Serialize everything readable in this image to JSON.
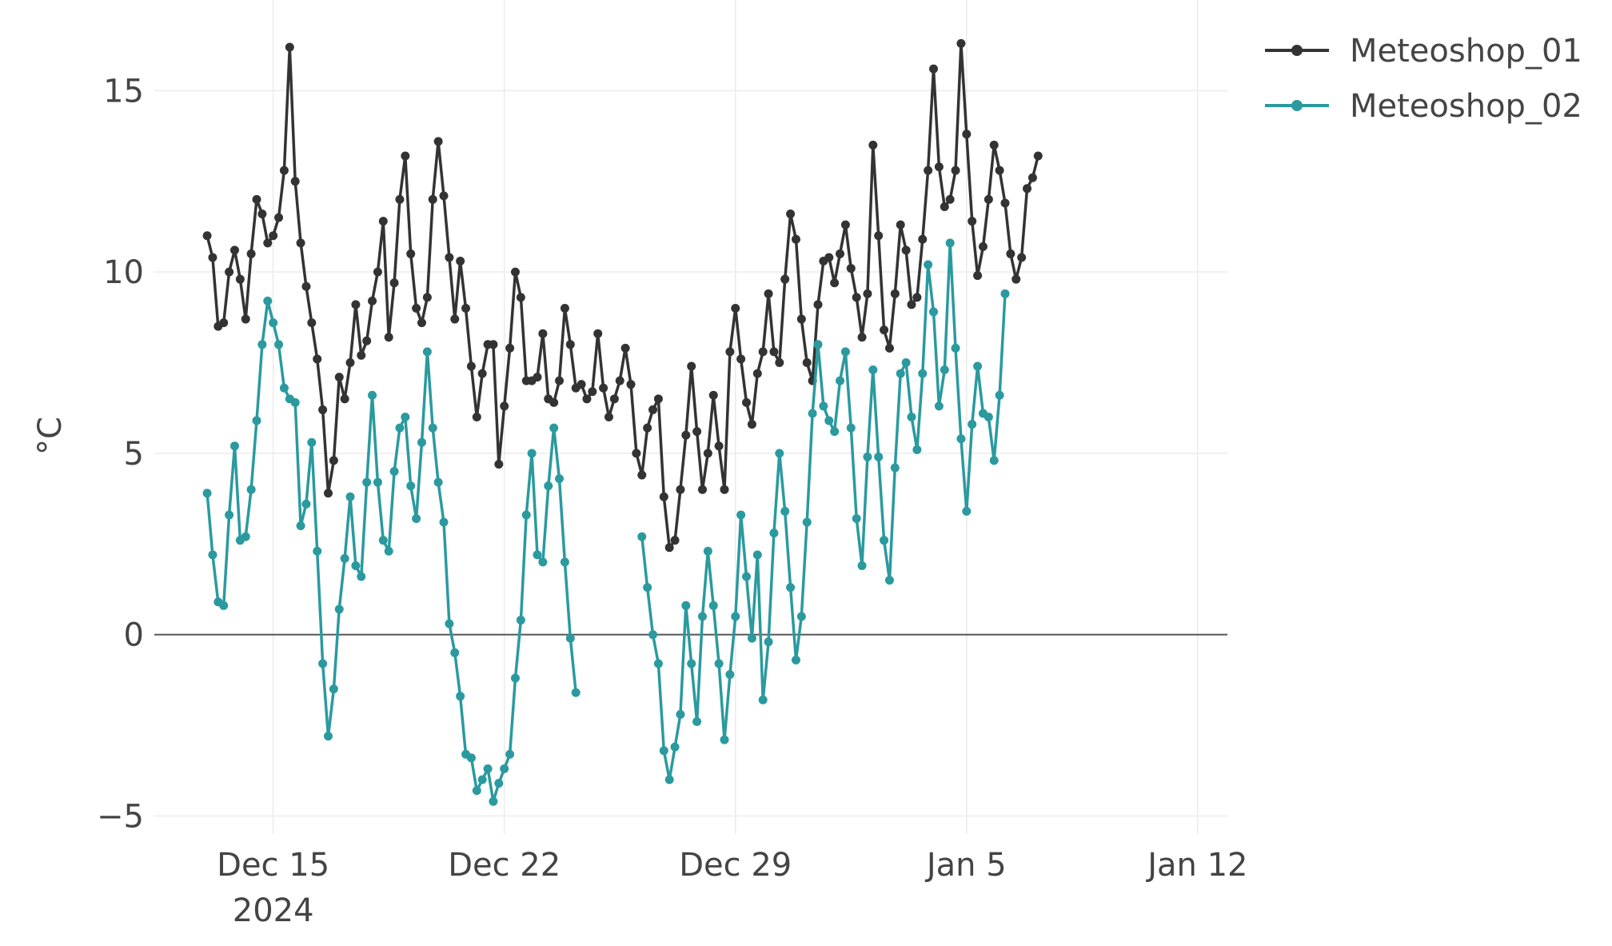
{
  "chart_data": {
    "type": "line",
    "title": "",
    "xlabel": "",
    "ylabel": "°C",
    "ylim": [
      -5.5,
      17.5
    ],
    "xlim_days": [
      -3.6,
      28.9
    ],
    "grid": true,
    "legend_position": "top-right",
    "x_units": "days since Dec 15 2024, step 1/6 day",
    "x_ticks": [
      {
        "day": 0,
        "label": "Dec 15",
        "sublabel": "2024"
      },
      {
        "day": 7,
        "label": "Dec 22",
        "sublabel": ""
      },
      {
        "day": 14,
        "label": "Dec 29",
        "sublabel": ""
      },
      {
        "day": 21,
        "label": "Jan 5",
        "sublabel": ""
      },
      {
        "day": 28,
        "label": "Jan 12",
        "sublabel": ""
      }
    ],
    "y_ticks": [
      {
        "value": -5,
        "label": "−5"
      },
      {
        "value": 0,
        "label": "0"
      },
      {
        "value": 5,
        "label": "5"
      },
      {
        "value": 10,
        "label": "10"
      },
      {
        "value": 15,
        "label": "15"
      }
    ],
    "series": [
      {
        "name": "Meteoshop_01",
        "color": "#333333",
        "x_start": -2.0,
        "x_step": 0.16667,
        "values": [
          11.0,
          10.4,
          8.5,
          8.6,
          10.0,
          10.6,
          9.8,
          8.7,
          10.5,
          12.0,
          11.6,
          10.8,
          11.0,
          11.5,
          12.8,
          16.2,
          12.5,
          10.8,
          9.6,
          8.6,
          7.6,
          6.2,
          3.9,
          4.8,
          7.1,
          6.5,
          7.5,
          9.1,
          7.7,
          8.1,
          9.2,
          10.0,
          11.4,
          8.2,
          9.7,
          12.0,
          13.2,
          10.5,
          9.0,
          8.6,
          9.3,
          12.0,
          13.6,
          12.1,
          10.4,
          8.7,
          10.3,
          9.0,
          7.4,
          6.0,
          7.2,
          8.0,
          8.0,
          4.7,
          6.3,
          7.9,
          10.0,
          9.3,
          7.0,
          7.0,
          7.1,
          8.3,
          6.5,
          6.4,
          7.0,
          9.0,
          8.0,
          6.8,
          6.9,
          6.5,
          6.7,
          8.3,
          6.8,
          6.0,
          6.5,
          7.0,
          7.9,
          6.9,
          5.0,
          4.4,
          5.7,
          6.2,
          6.5,
          3.8,
          2.4,
          2.6,
          4.0,
          5.5,
          7.4,
          5.6,
          4.0,
          5.0,
          6.6,
          5.2,
          4.0,
          7.8,
          9.0,
          7.6,
          6.4,
          5.8,
          7.2,
          7.8,
          9.4,
          7.8,
          7.5,
          9.8,
          11.6,
          10.9,
          8.7,
          7.5,
          7.0,
          9.1,
          10.3,
          10.4,
          9.7,
          10.5,
          11.3,
          10.1,
          9.3,
          8.2,
          9.4,
          13.5,
          11.0,
          8.4,
          7.9,
          9.4,
          11.3,
          10.6,
          9.1,
          9.3,
          10.9,
          12.8,
          15.6,
          12.9,
          11.8,
          12.0,
          12.8,
          16.3,
          13.8,
          11.4,
          9.9,
          10.7,
          12.0,
          13.5,
          12.8,
          11.9,
          10.5,
          9.8,
          10.4,
          12.3,
          12.6,
          13.2
        ]
      },
      {
        "name": "Meteoshop_02",
        "color": "#2A9A9F",
        "x_start": -2.0,
        "x_step": 0.16667,
        "values": [
          3.9,
          2.2,
          0.9,
          0.8,
          3.3,
          5.2,
          2.6,
          2.7,
          4.0,
          5.9,
          8.0,
          9.2,
          8.6,
          8.0,
          6.8,
          6.5,
          6.4,
          3.0,
          3.6,
          5.3,
          2.3,
          -0.8,
          -2.8,
          -1.5,
          0.7,
          2.1,
          3.8,
          1.9,
          1.6,
          4.2,
          6.6,
          4.2,
          2.6,
          2.3,
          4.5,
          5.7,
          6.0,
          4.1,
          3.2,
          5.3,
          7.8,
          5.7,
          4.2,
          3.1,
          0.3,
          -0.5,
          -1.7,
          -3.3,
          -3.4,
          -4.3,
          -4.0,
          -3.7,
          -4.6,
          -4.1,
          -3.7,
          -3.3,
          -1.2,
          0.4,
          3.3,
          5.0,
          2.2,
          2.0,
          4.1,
          5.7,
          4.3,
          2.0,
          -0.1,
          -1.6,
          null,
          null,
          null,
          null,
          null,
          null,
          null,
          null,
          null,
          null,
          null,
          2.7,
          1.3,
          0.0,
          -0.8,
          -3.2,
          -4.0,
          -3.1,
          -2.2,
          0.8,
          -0.8,
          -2.4,
          0.5,
          2.3,
          0.8,
          -0.8,
          -2.9,
          -1.1,
          0.5,
          3.3,
          1.6,
          -0.1,
          2.2,
          -1.8,
          -0.2,
          2.8,
          5.0,
          3.4,
          1.3,
          -0.7,
          0.5,
          3.1,
          6.1,
          8.0,
          6.3,
          5.9,
          5.6,
          7.0,
          7.8,
          5.7,
          3.2,
          1.9,
          4.9,
          7.3,
          4.9,
          2.6,
          1.5,
          4.6,
          7.2,
          7.5,
          6.0,
          5.1,
          7.2,
          10.2,
          8.9,
          6.3,
          7.3,
          10.8,
          7.9,
          5.4,
          3.4,
          5.8,
          7.4,
          6.1,
          6.0,
          4.8,
          6.6,
          9.4
        ]
      }
    ]
  }
}
